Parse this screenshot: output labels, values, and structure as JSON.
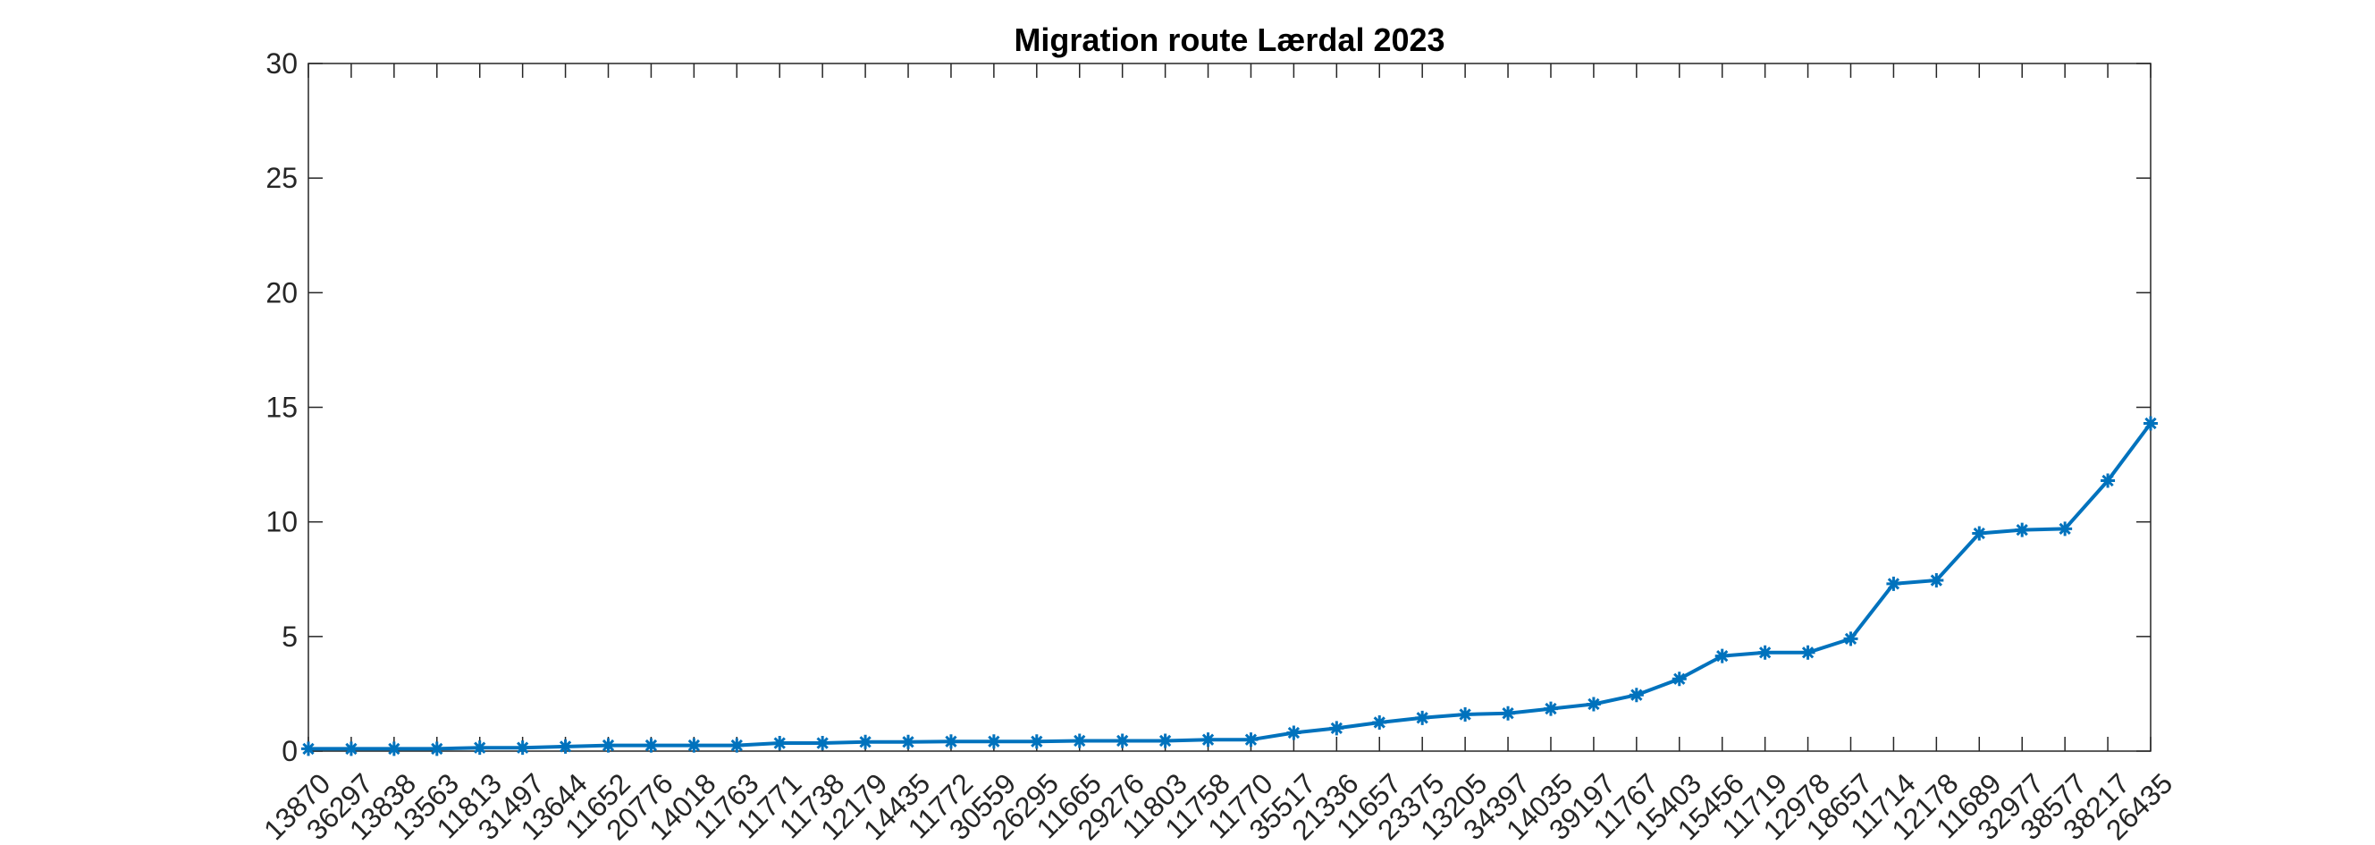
{
  "chart_data": {
    "type": "line",
    "title": "Migration route Lærdal 2023",
    "xlabel": "",
    "ylabel": "",
    "ylim": [
      0,
      30
    ],
    "yticks": [
      "0",
      "5",
      "10",
      "15",
      "20",
      "25",
      "30"
    ],
    "grid": false,
    "color": "#0072BD",
    "marker": "asterisk",
    "categories": [
      "13870",
      "36297",
      "13838",
      "13563",
      "11813",
      "31497",
      "13644",
      "11652",
      "20776",
      "14018",
      "11763",
      "11771",
      "11738",
      "12179",
      "14435",
      "11772",
      "30559",
      "26295",
      "11665",
      "29276",
      "11803",
      "11758",
      "11770",
      "35517",
      "21336",
      "11657",
      "23375",
      "13205",
      "34397",
      "14035",
      "39197",
      "11767",
      "15403",
      "15456",
      "11719",
      "12978",
      "18657",
      "11714",
      "12178",
      "11689",
      "32977",
      "38577",
      "38217",
      "26435"
    ],
    "values": [
      0.1,
      0.1,
      0.1,
      0.1,
      0.15,
      0.15,
      0.2,
      0.25,
      0.25,
      0.25,
      0.25,
      0.35,
      0.35,
      0.4,
      0.4,
      0.42,
      0.42,
      0.42,
      0.45,
      0.45,
      0.45,
      0.5,
      0.5,
      0.8,
      1.0,
      1.25,
      1.45,
      1.6,
      1.65,
      1.85,
      2.05,
      2.45,
      3.15,
      4.15,
      4.3,
      4.3,
      4.9,
      7.3,
      7.45,
      9.5,
      9.65,
      9.7,
      11.8,
      14.3
    ]
  }
}
